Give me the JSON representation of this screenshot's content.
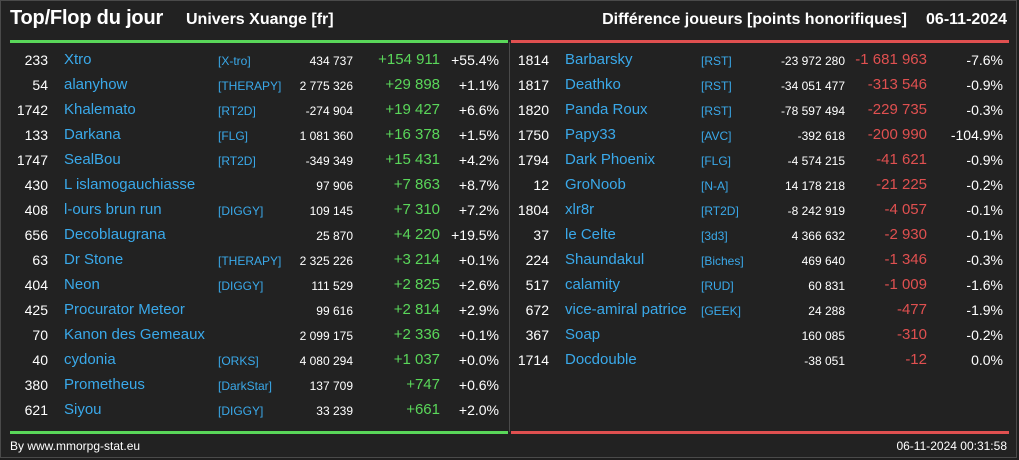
{
  "header": {
    "title": "Top/Flop du jour",
    "universe": "Univers Xuange [fr]",
    "metric": "Différence joueurs [points honorifiques]",
    "date": "06-11-2024"
  },
  "colors": {
    "positive": "#5ad75a",
    "negative": "#e05050",
    "link": "#3aa9ea"
  },
  "top": [
    {
      "rank": "233",
      "name": "Xtro",
      "alliance": "[X-tro]",
      "points": "434 737",
      "delta": "+154 911",
      "pct": "+55.4%"
    },
    {
      "rank": "54",
      "name": "alanyhow",
      "alliance": "[THERAPY]",
      "points": "2 775 326",
      "delta": "+29 898",
      "pct": "+1.1%"
    },
    {
      "rank": "1742",
      "name": "Khalemato",
      "alliance": "[RT2D]",
      "points": "-274 904",
      "delta": "+19 427",
      "pct": "+6.6%"
    },
    {
      "rank": "133",
      "name": "Darkana",
      "alliance": "[FLG]",
      "points": "1 081 360",
      "delta": "+16 378",
      "pct": "+1.5%"
    },
    {
      "rank": "1747",
      "name": "SealBou",
      "alliance": "[RT2D]",
      "points": "-349 349",
      "delta": "+15 431",
      "pct": "+4.2%"
    },
    {
      "rank": "430",
      "name": "L islamogauchiasse",
      "alliance": "",
      "points": "97 906",
      "delta": "+7 863",
      "pct": "+8.7%"
    },
    {
      "rank": "408",
      "name": "l-ours brun run",
      "alliance": "[DIGGY]",
      "points": "109 145",
      "delta": "+7 310",
      "pct": "+7.2%"
    },
    {
      "rank": "656",
      "name": "Decoblaugrana",
      "alliance": "",
      "points": "25 870",
      "delta": "+4 220",
      "pct": "+19.5%"
    },
    {
      "rank": "63",
      "name": "Dr Stone",
      "alliance": "[THERAPY]",
      "points": "2 325 226",
      "delta": "+3 214",
      "pct": "+0.1%"
    },
    {
      "rank": "404",
      "name": "Neon",
      "alliance": "[DIGGY]",
      "points": "111 529",
      "delta": "+2 825",
      "pct": "+2.6%"
    },
    {
      "rank": "425",
      "name": "Procurator Meteor",
      "alliance": "",
      "points": "99 616",
      "delta": "+2 814",
      "pct": "+2.9%"
    },
    {
      "rank": "70",
      "name": "Kanon des Gemeaux",
      "alliance": "",
      "points": "2 099 175",
      "delta": "+2 336",
      "pct": "+0.1%"
    },
    {
      "rank": "40",
      "name": "cydonia",
      "alliance": "[ORKS]",
      "points": "4 080 294",
      "delta": "+1 037",
      "pct": "+0.0%"
    },
    {
      "rank": "380",
      "name": "Prometheus",
      "alliance": "[DarkStar]",
      "points": "137 709",
      "delta": "+747",
      "pct": "+0.6%"
    },
    {
      "rank": "621",
      "name": "Siyou",
      "alliance": "[DIGGY]",
      "points": "33 239",
      "delta": "+661",
      "pct": "+2.0%"
    }
  ],
  "flop": [
    {
      "rank": "1814",
      "name": "Barbarsky",
      "alliance": "[RST]",
      "points": "-23 972 280",
      "delta": "-1 681 963",
      "pct": "-7.6%"
    },
    {
      "rank": "1817",
      "name": "Deathko",
      "alliance": "[RST]",
      "points": "-34 051 477",
      "delta": "-313 546",
      "pct": "-0.9%"
    },
    {
      "rank": "1820",
      "name": "Panda Roux",
      "alliance": "[RST]",
      "points": "-78 597 494",
      "delta": "-229 735",
      "pct": "-0.3%"
    },
    {
      "rank": "1750",
      "name": "Papy33",
      "alliance": "[AVC]",
      "points": "-392 618",
      "delta": "-200 990",
      "pct": "-104.9%"
    },
    {
      "rank": "1794",
      "name": "Dark Phoenix",
      "alliance": "[FLG]",
      "points": "-4 574 215",
      "delta": "-41 621",
      "pct": "-0.9%"
    },
    {
      "rank": "12",
      "name": "GroNoob",
      "alliance": "[N-A]",
      "points": "14 178 218",
      "delta": "-21 225",
      "pct": "-0.2%"
    },
    {
      "rank": "1804",
      "name": "xlr8r",
      "alliance": "[RT2D]",
      "points": "-8 242 919",
      "delta": "-4 057",
      "pct": "-0.1%"
    },
    {
      "rank": "37",
      "name": "le Celte",
      "alliance": "[3d3]",
      "points": "4 366 632",
      "delta": "-2 930",
      "pct": "-0.1%"
    },
    {
      "rank": "224",
      "name": "Shaundakul",
      "alliance": "[Biches]",
      "points": "469 640",
      "delta": "-1 346",
      "pct": "-0.3%"
    },
    {
      "rank": "517",
      "name": "calamity",
      "alliance": "[RUD]",
      "points": "60 831",
      "delta": "-1 009",
      "pct": "-1.6%"
    },
    {
      "rank": "672",
      "name": "vice-amiral patrice",
      "alliance": "[GEEK]",
      "points": "24 288",
      "delta": "-477",
      "pct": "-1.9%"
    },
    {
      "rank": "367",
      "name": "Soap",
      "alliance": "",
      "points": "160 085",
      "delta": "-310",
      "pct": "-0.2%"
    },
    {
      "rank": "1714",
      "name": "Docdouble",
      "alliance": "",
      "points": "-38 051",
      "delta": "-12",
      "pct": "0.0%"
    }
  ],
  "footer": {
    "source": "By www.mmorpg-stat.eu",
    "timestamp": "06-11-2024 00:31:58"
  }
}
